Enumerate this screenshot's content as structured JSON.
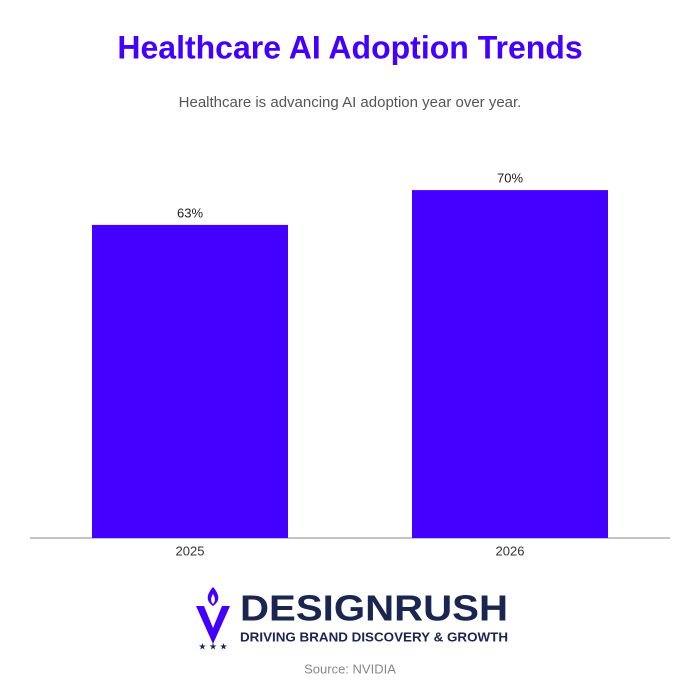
{
  "chart_data": {
    "type": "bar",
    "title": "Healthcare AI Adoption Trends",
    "subtitle": "Healthcare is advancing AI adoption year over year.",
    "categories": [
      "2025",
      "2026"
    ],
    "values": [
      63,
      70
    ],
    "value_labels": [
      "63%",
      "70%"
    ],
    "color": "#4400ff",
    "ylim": [
      0,
      100
    ]
  },
  "logo": {
    "name": "DESIGNRUSH",
    "tagline": "DRIVING BRAND DISCOVERY & GROWTH"
  },
  "source": "Source: NVIDIA"
}
